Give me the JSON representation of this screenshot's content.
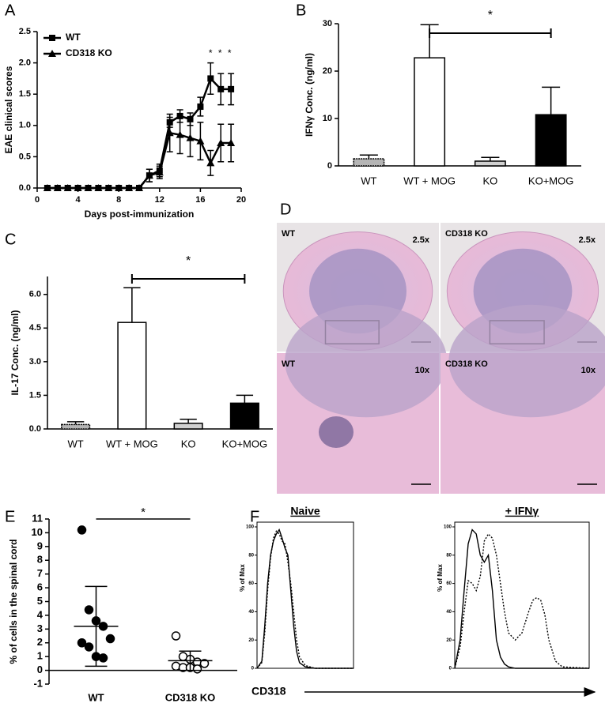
{
  "panel_letters": [
    "A",
    "B",
    "C",
    "D",
    "E",
    "F"
  ],
  "chart_data": [
    {
      "type": "line",
      "xlabel": "Days post-immunization",
      "ylabel": "EAE clinical scores",
      "annotation": "* * *",
      "legend": "upper left",
      "xlim": [
        0,
        20
      ],
      "xticks": [
        0,
        4,
        8,
        12,
        16,
        20
      ],
      "ylim": [
        0,
        2.5
      ],
      "yticks": [
        {
          "value": 0,
          "label": "0.0"
        },
        0.5,
        {
          "value": 1,
          "label": "1.0"
        },
        1.5,
        {
          "value": 2,
          "label": "2.0"
        },
        2.5
      ],
      "x": [
        1,
        2,
        3,
        4,
        5,
        6,
        7,
        8,
        9,
        10,
        11,
        12,
        13,
        14,
        15,
        16,
        17,
        18,
        19
      ],
      "series": [
        {
          "name": "WT",
          "color": "#000000",
          "marker": "square",
          "values": [
            0,
            0,
            0,
            0,
            0,
            0,
            0,
            0,
            0,
            0,
            0.2,
            0.28,
            1.05,
            1.15,
            1.1,
            1.3,
            1.75,
            1.58,
            1.58
          ],
          "errors": [
            0,
            0,
            0,
            0,
            0,
            0,
            0,
            0,
            0,
            0,
            0.1,
            0.1,
            0.08,
            0.1,
            0.1,
            0.15,
            0.25,
            0.25,
            0.25
          ]
        },
        {
          "name": "CD318 KO",
          "color": "#000000",
          "marker": "triangle",
          "values": [
            0,
            0,
            0,
            0,
            0,
            0,
            0,
            0,
            0,
            0,
            0.2,
            0.25,
            0.88,
            0.85,
            0.8,
            0.75,
            0.4,
            0.72,
            0.72
          ],
          "errors": [
            0,
            0,
            0,
            0,
            0,
            0,
            0,
            0,
            0,
            0,
            0.1,
            0.1,
            0.3,
            0.3,
            0.3,
            0.3,
            0.2,
            0.3,
            0.3
          ]
        }
      ]
    },
    {
      "type": "bar",
      "ylabel": "IFNγ Conc. (ng/ml)",
      "annotation": "*",
      "categories": [
        "WT",
        "WT + MOG",
        "KO",
        "KO+MOG"
      ],
      "values": [
        1.5,
        22.8,
        1,
        10.8
      ],
      "errors": [
        0.8,
        7,
        0.8,
        5.8
      ],
      "colors": [
        "#b5b5b5",
        "#ffffff",
        "#d0d0d0",
        "#000000"
      ],
      "ylim": [
        0,
        30
      ],
      "yticks": [
        0,
        10,
        20,
        30
      ]
    },
    {
      "type": "bar",
      "ylabel": "IL-17 Conc. (ng/ml)",
      "annotation": "*",
      "categories": [
        "WT",
        "WT + MOG",
        "KO",
        "KO+MOG"
      ],
      "values": [
        0.2,
        4.75,
        0.25,
        1.15
      ],
      "errors": [
        0.12,
        1.55,
        0.18,
        0.35
      ],
      "colors": [
        "#b5b5b5",
        "#ffffff",
        "#d0d0d0",
        "#000000"
      ],
      "ylim": [
        0,
        6.8
      ],
      "yticks": [
        {
          "value": 0,
          "label": "0.0"
        },
        1.5,
        {
          "value": 3,
          "label": "3.0"
        },
        4.5,
        {
          "value": 6,
          "label": "6.0"
        }
      ]
    },
    {
      "type": "dot",
      "ylabel": "% of cells in the spinal cord",
      "annotation": "*",
      "ylim": [
        -1,
        11
      ],
      "yticks": [
        -1,
        0,
        1,
        2,
        3,
        4,
        5,
        6,
        7,
        8,
        9,
        10,
        11
      ],
      "groups": [
        {
          "name": "WT",
          "fill": "#000000",
          "values": [
            10.2,
            4.4,
            3.6,
            3.2,
            2.3,
            2.0,
            1.7,
            1.0,
            0.9
          ],
          "mean": 3.2,
          "sd": 2.9
        },
        {
          "name": "CD318 KO",
          "fill": "#ffffff",
          "values": [
            2.5,
            1.0,
            0.8,
            0.6,
            0.5,
            0.3,
            0.2,
            0.2,
            0.1
          ],
          "mean": 0.7,
          "sd": 0.7
        }
      ]
    },
    {
      "type": "flow",
      "ylabel": "% of Max",
      "xlabel": "CD318",
      "xlim": [
        0,
        100
      ],
      "ylim": [
        0,
        100
      ],
      "yticks": [
        0,
        20,
        40,
        60,
        80,
        100
      ],
      "plots": [
        {
          "title": "Naive",
          "x": [
            0,
            5,
            8,
            11,
            14,
            17,
            20,
            23,
            26,
            29,
            32,
            35,
            38,
            41,
            44,
            50,
            60,
            100
          ],
          "series": [
            {
              "color": "#000000",
              "style": "solid",
              "values": [
                0,
                5,
                30,
                60,
                80,
                90,
                95,
                98,
                92,
                85,
                80,
                55,
                30,
                12,
                4,
                1,
                0,
                0
              ]
            },
            {
              "color": "#000000",
              "style": "dotted",
              "values": [
                0,
                4,
                25,
                55,
                78,
                92,
                97,
                95,
                90,
                88,
                75,
                60,
                40,
                20,
                8,
                2,
                0,
                0
              ]
            }
          ]
        },
        {
          "title": "+ IFNγ",
          "x": [
            0,
            4,
            7,
            10,
            13,
            16,
            19,
            22,
            25,
            28,
            31,
            34,
            37,
            40,
            45,
            50,
            55,
            58,
            61,
            64,
            67,
            70,
            75,
            80,
            100
          ],
          "series": [
            {
              "color": "#000000",
              "style": "solid",
              "values": [
                0,
                20,
                55,
                88,
                98,
                95,
                80,
                75,
                80,
                55,
                20,
                8,
                3,
                1,
                0,
                0,
                0,
                0,
                0,
                0,
                0,
                0,
                0,
                0,
                0
              ]
            },
            {
              "color": "#000000",
              "style": "dotted",
              "values": [
                0,
                15,
                40,
                62,
                60,
                55,
                65,
                90,
                95,
                92,
                80,
                60,
                40,
                25,
                20,
                25,
                40,
                48,
                50,
                48,
                38,
                20,
                5,
                1,
                0
              ]
            }
          ]
        }
      ]
    }
  ],
  "histology": {
    "tiles": [
      {
        "label": "WT",
        "magnification": "2.5x"
      },
      {
        "label": "CD318 KO",
        "magnification": "2.5x"
      },
      {
        "label": "WT",
        "magnification": "10x"
      },
      {
        "label": "CD318 KO",
        "magnification": "10x"
      }
    ]
  }
}
